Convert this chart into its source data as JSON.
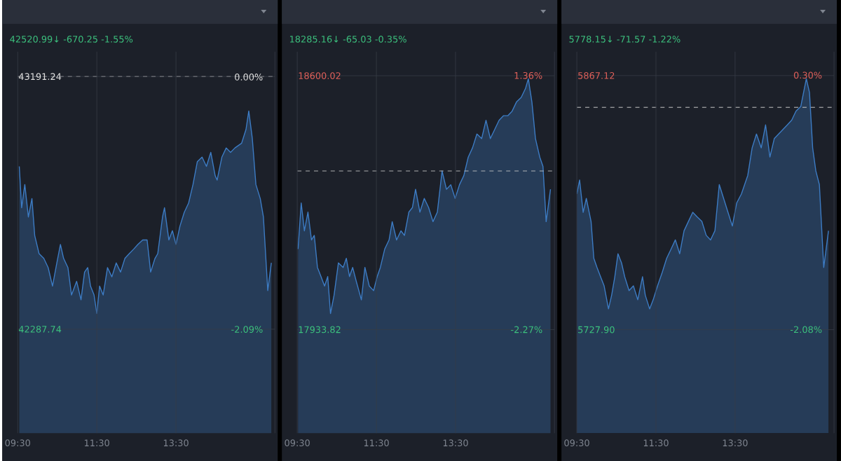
{
  "chart_data": [
    {
      "type": "area",
      "subtitle": "42520.99↓ -670.25 -1.55%",
      "xlim": [
        9.5,
        16
      ],
      "xticks": [
        {
          "value": 9.5,
          "label": "09:30"
        },
        {
          "value": 11.5,
          "label": "11:30"
        },
        {
          "value": 13.5,
          "label": "13:30"
        }
      ],
      "ylim": [
        41916,
        43280
      ],
      "yticks": [
        {
          "value": 42287.74,
          "label": "42287.74"
        },
        {
          "value": 43191.24,
          "label": "43191.24"
        }
      ],
      "y2lim": [
        -2.95,
        0.21
      ],
      "y2ticks": [
        {
          "value": -2.09,
          "label": "-2.09%"
        },
        {
          "value": 0,
          "label": "0.00%"
        }
      ],
      "grid": true,
      "ref_lines": [
        {
          "axis": "y",
          "value": 43191.24,
          "color": "#c8c8c8",
          "line_style": "dashed"
        }
      ],
      "series": [
        {
          "color": "#3d7cc4",
          "x": [
            9.54,
            9.6,
            9.68,
            9.77,
            9.86,
            9.93,
            10.04,
            10.16,
            10.27,
            10.38,
            10.49,
            10.58,
            10.66,
            10.77,
            10.86,
            10.99,
            11.1,
            11.19,
            11.27,
            11.34,
            11.43,
            11.5,
            11.57,
            11.66,
            11.77,
            11.88,
            11.99,
            12.1,
            12.21,
            12.32,
            12.43,
            12.54,
            12.66,
            12.77,
            12.86,
            12.97,
            13.04,
            13.16,
            13.21,
            13.32,
            13.41,
            13.5,
            13.6,
            13.71,
            13.82,
            13.93,
            14.04,
            14.16,
            14.27,
            14.38,
            14.49,
            14.54,
            14.66,
            14.77,
            14.88,
            14.99,
            15.16,
            15.27,
            15.34,
            15.43,
            15.52,
            15.63,
            15.71,
            15.82,
            15.91
          ],
          "values": [
            42870,
            42722,
            42805,
            42689,
            42755,
            42623,
            42558,
            42541,
            42508,
            42442,
            42525,
            42591,
            42541,
            42508,
            42410,
            42459,
            42393,
            42492,
            42508,
            42442,
            42410,
            42344,
            42442,
            42410,
            42508,
            42475,
            42525,
            42492,
            42541,
            42558,
            42574,
            42591,
            42607,
            42607,
            42492,
            42541,
            42558,
            42689,
            42722,
            42607,
            42640,
            42591,
            42656,
            42706,
            42739,
            42805,
            42887,
            42903,
            42870,
            42920,
            42837,
            42821,
            42903,
            42936,
            42920,
            42936,
            42953,
            43002,
            43068,
            42969,
            42805,
            42755,
            42689,
            42426,
            42525
          ]
        }
      ]
    },
    {
      "type": "area",
      "subtitle": "18285.16↓ -65.03 -0.35%",
      "xlim": [
        9.5,
        16
      ],
      "xticks": [
        {
          "value": 9.5,
          "label": "09:30"
        },
        {
          "value": 11.5,
          "label": "11:30"
        },
        {
          "value": 13.5,
          "label": "13:30"
        }
      ],
      "ylim": [
        17662,
        18663
      ],
      "yticks": [
        {
          "value": 17933.82,
          "label": "17933.82"
        },
        {
          "value": 18600.02,
          "label": "18600.02"
        }
      ],
      "y2lim": [
        -3.75,
        1.7
      ],
      "y2ticks": [
        {
          "value": -2.27,
          "label": "-2.27%"
        },
        {
          "value": 1.36,
          "label": "1.36%"
        }
      ],
      "grid": true,
      "ref_lines": [
        {
          "axis": "y",
          "value": 18350.19,
          "color": "#c8c8c8",
          "line_style": "dashed"
        }
      ],
      "series": [
        {
          "color": "#3d7cc4",
          "x": [
            9.52,
            9.6,
            9.68,
            9.77,
            9.86,
            9.93,
            10.01,
            10.1,
            10.19,
            10.27,
            10.34,
            10.43,
            10.54,
            10.66,
            10.74,
            10.82,
            10.9,
            10.99,
            11.12,
            11.21,
            11.32,
            11.43,
            11.52,
            11.6,
            11.71,
            11.82,
            11.9,
            12.01,
            12.12,
            12.21,
            12.32,
            12.41,
            12.49,
            12.6,
            12.71,
            12.82,
            12.93,
            13.04,
            13.16,
            13.27,
            13.38,
            13.49,
            13.6,
            13.71,
            13.82,
            13.93,
            14.04,
            14.16,
            14.27,
            14.38,
            14.49,
            14.6,
            14.71,
            14.82,
            14.93,
            15.04,
            15.16,
            15.27,
            15.34,
            15.43,
            15.52,
            15.63,
            15.71,
            15.79,
            15.9
          ],
          "values": [
            18145,
            18266,
            18193,
            18242,
            18169,
            18181,
            18097,
            18073,
            18048,
            18073,
            17976,
            18024,
            18109,
            18097,
            18121,
            18073,
            18097,
            18061,
            18012,
            18097,
            18048,
            18036,
            18073,
            18097,
            18145,
            18169,
            18217,
            18169,
            18193,
            18181,
            18242,
            18254,
            18302,
            18242,
            18278,
            18254,
            18217,
            18242,
            18350,
            18302,
            18314,
            18278,
            18314,
            18338,
            18386,
            18411,
            18447,
            18435,
            18483,
            18435,
            18459,
            18483,
            18495,
            18495,
            18507,
            18531,
            18543,
            18567,
            18592,
            18531,
            18435,
            18386,
            18362,
            18217,
            18302
          ]
        }
      ]
    },
    {
      "type": "area",
      "subtitle": "5778.15↓ -71.57 -1.22%",
      "xlim": [
        9.5,
        16
      ],
      "xticks": [
        {
          "value": 9.5,
          "label": "09:30"
        },
        {
          "value": 11.5,
          "label": "11:30"
        },
        {
          "value": 13.5,
          "label": "13:30"
        }
      ],
      "ylim": [
        5671.2,
        5880.2
      ],
      "yticks": [
        {
          "value": 5727.9,
          "label": "5727.90"
        },
        {
          "value": 5867.12,
          "label": "5867.12"
        }
      ],
      "y2lim": [
        -3.05,
        0.52
      ],
      "y2ticks": [
        {
          "value": -2.08,
          "label": "-2.08%"
        },
        {
          "value": 0.3,
          "label": "0.30%"
        }
      ],
      "grid": true,
      "ref_lines": [
        {
          "axis": "y",
          "value": 5849.72,
          "color": "#c8c8c8",
          "line_style": "dashed"
        }
      ],
      "series": [
        {
          "color": "#3d7cc4",
          "x": [
            9.5,
            9.57,
            9.66,
            9.74,
            9.86,
            9.93,
            10.01,
            10.1,
            10.19,
            10.3,
            10.38,
            10.46,
            10.54,
            10.63,
            10.71,
            10.82,
            10.93,
            11.04,
            11.16,
            11.23,
            11.34,
            11.43,
            11.54,
            11.66,
            11.77,
            11.88,
            11.99,
            12.1,
            12.21,
            12.32,
            12.43,
            12.54,
            12.66,
            12.77,
            12.88,
            12.99,
            13.1,
            13.21,
            13.32,
            13.43,
            13.54,
            13.66,
            13.82,
            13.93,
            14.04,
            14.16,
            14.27,
            14.38,
            14.49,
            14.6,
            14.71,
            14.82,
            14.93,
            15.04,
            15.16,
            15.3,
            15.38,
            15.46,
            15.54,
            15.63,
            15.74,
            15.86
          ],
          "values": [
            5802.3,
            5809.9,
            5792.2,
            5799.8,
            5787.2,
            5767.0,
            5762.0,
            5756.9,
            5751.9,
            5739.3,
            5746.8,
            5756.9,
            5769.5,
            5764.5,
            5756.9,
            5749.3,
            5751.9,
            5744.3,
            5756.9,
            5746.8,
            5739.3,
            5744.3,
            5751.9,
            5759.4,
            5767.0,
            5772.0,
            5777.1,
            5769.5,
            5782.1,
            5787.2,
            5792.2,
            5789.7,
            5787.2,
            5779.6,
            5777.1,
            5782.1,
            5807.4,
            5799.8,
            5792.2,
            5784.7,
            5797.3,
            5802.3,
            5812.4,
            5827.5,
            5835.1,
            5827.5,
            5840.1,
            5822.5,
            5832.6,
            5835.1,
            5837.6,
            5840.1,
            5842.7,
            5847.7,
            5850.2,
            5865.4,
            5857.8,
            5827.5,
            5814.9,
            5807.4,
            5762.0,
            5782.1
          ]
        }
      ]
    }
  ]
}
